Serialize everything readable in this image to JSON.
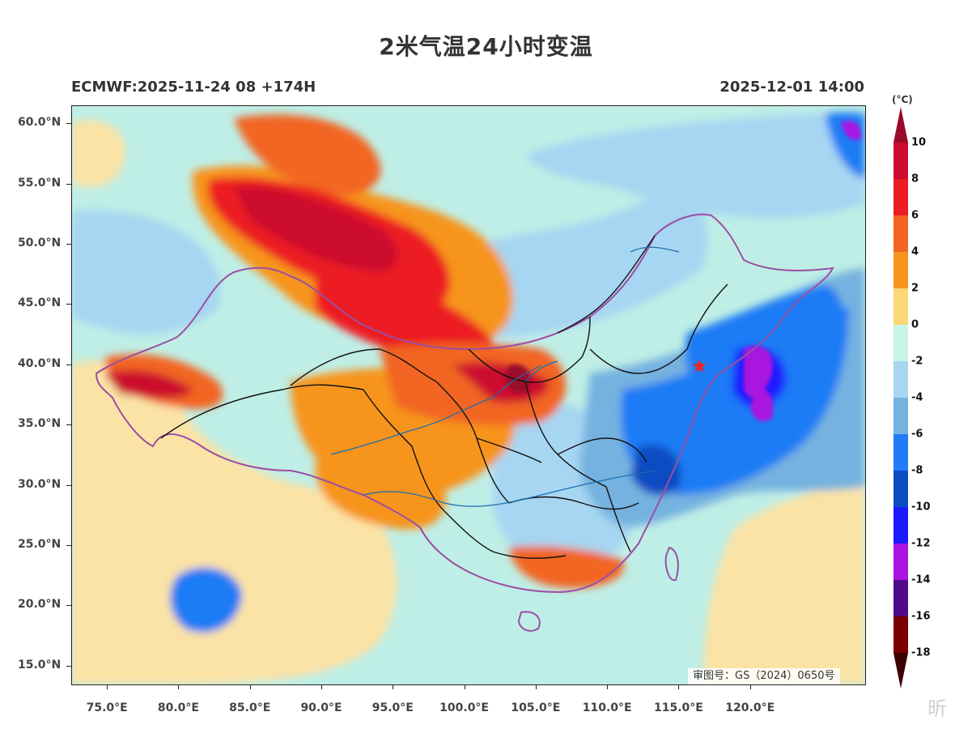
{
  "title": "2米气温24小时变温",
  "subtitle_left": "ECMWF:2025-11-24 08 +174H",
  "subtitle_right": "2025-12-01 14:00",
  "map": {
    "lon_range": [
      72.5,
      128.0
    ],
    "lat_range": [
      13.5,
      61.5
    ],
    "lat_ticks": [
      "60.0°N",
      "55.0°N",
      "50.0°N",
      "45.0°N",
      "40.0°N",
      "35.0°N",
      "30.0°N",
      "25.0°N",
      "20.0°N",
      "15.0°N"
    ],
    "lat_values": [
      60,
      55,
      50,
      45,
      40,
      35,
      30,
      25,
      20,
      15
    ],
    "lon_ticks": [
      "75.0°E",
      "80.0°E",
      "85.0°E",
      "90.0°E",
      "95.0°E",
      "100.0°E",
      "105.0°E",
      "110.0°E",
      "115.0°E",
      "120.0°E"
    ],
    "lon_values": [
      75,
      80,
      85,
      90,
      95,
      100,
      105,
      110,
      115,
      120
    ],
    "marker": {
      "name": "star",
      "lon": 116.4,
      "lat": 39.9,
      "color": "#e8262a"
    },
    "approval_text": "审图号：GS（2024）0650号"
  },
  "colorbar": {
    "unit": "(°C)",
    "labels": [
      "10",
      "8",
      "6",
      "4",
      "2",
      "0",
      "-2",
      "-4",
      "-6",
      "-8",
      "-10",
      "-12",
      "-14",
      "-16",
      "-18"
    ],
    "colors": [
      "#9b0a2a",
      "#cc0b2e",
      "#ec1c24",
      "#f26522",
      "#f7941d",
      "#fbd775",
      "#c8f6e8",
      "#a6d6f2",
      "#76b2e0",
      "#1f7cf5",
      "#0c4cc2",
      "#1a1aff",
      "#a912e0",
      "#500a8a",
      "#7a0000",
      "#3d0000"
    ]
  },
  "watermark": "昕"
}
